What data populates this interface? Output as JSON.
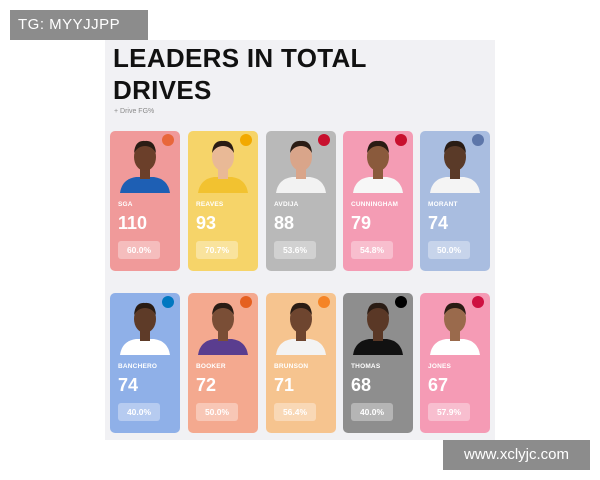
{
  "watermark_top": "TG: MYYJJPP",
  "watermark_bottom": "www.xclyjc.com",
  "title_line1": "LEADERS IN TOTAL",
  "title_line2": "DRIVES",
  "legend": "+ Drive FG%",
  "players": [
    {
      "name": "SGA",
      "drives": "110",
      "fg": "60.0%",
      "color": "#f09a9a",
      "skin": "#6b3f2a",
      "jersey": "#1e5fb4",
      "logo": "#e8673a",
      "logo_icon": "circle-logo-icon"
    },
    {
      "name": "REAVES",
      "drives": "93",
      "fg": "70.7%",
      "color": "#f6d469",
      "skin": "#e9b996",
      "jersey": "#f2c230",
      "logo": "#f2a900",
      "logo_icon": "circle-logo-icon"
    },
    {
      "name": "AVDIJA",
      "drives": "88",
      "fg": "53.6%",
      "color": "#b9b9b9",
      "skin": "#d9a58a",
      "jersey": "#f2f2f2",
      "logo": "#c8102e",
      "logo_icon": "circle-logo-icon"
    },
    {
      "name": "CUNNINGHAM",
      "drives": "79",
      "fg": "54.8%",
      "color": "#f49cb4",
      "skin": "#8a5a3c",
      "jersey": "#f7f7f7",
      "logo": "#c8102e",
      "logo_icon": "circle-logo-icon"
    },
    {
      "name": "MORANT",
      "drives": "74",
      "fg": "50.0%",
      "color": "#a9bde0",
      "skin": "#5a3a28",
      "jersey": "#f4f4f4",
      "logo": "#5d76a9",
      "logo_icon": "circle-logo-icon"
    },
    {
      "name": "BANCHERO",
      "drives": "74",
      "fg": "40.0%",
      "color": "#8fb0e8",
      "skin": "#5e3b28",
      "jersey": "#ffffff",
      "logo": "#0077c0",
      "logo_icon": "circle-logo-icon"
    },
    {
      "name": "BOOKER",
      "drives": "72",
      "fg": "50.0%",
      "color": "#f4a98f",
      "skin": "#7a4e36",
      "jersey": "#5a3d8f",
      "logo": "#e56020",
      "logo_icon": "circle-logo-icon"
    },
    {
      "name": "BRUNSON",
      "drives": "71",
      "fg": "56.4%",
      "color": "#f6c48f",
      "skin": "#6e452f",
      "jersey": "#f3f3f3",
      "logo": "#f58426",
      "logo_icon": "circle-logo-icon"
    },
    {
      "name": "THOMAS",
      "drives": "68",
      "fg": "40.0%",
      "color": "#8e8e8e",
      "skin": "#5a3826",
      "jersey": "#111111",
      "logo": "#000000",
      "logo_icon": "circle-logo-icon"
    },
    {
      "name": "JONES",
      "drives": "67",
      "fg": "57.9%",
      "color": "#f59bb5",
      "skin": "#9a6a4c",
      "jersey": "#ffffff",
      "logo": "#ce1141",
      "logo_icon": "circle-logo-icon"
    }
  ]
}
